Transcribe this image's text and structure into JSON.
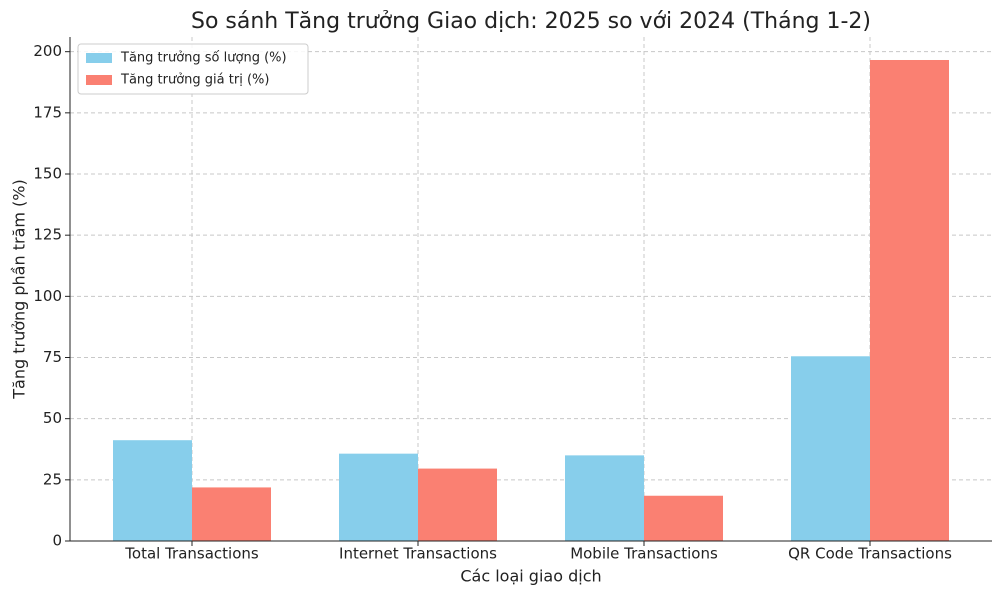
{
  "chart_data": {
    "type": "bar",
    "title": "So sánh Tăng trưởng Giao dịch: 2025 so với 2024 (Tháng 1-2)",
    "x_label": "Các loại giao dịch",
    "y_label": "Tăng trưởng phần trăm (%)",
    "categories": [
      "Total Transactions",
      "Internet Transactions",
      "Mobile Transactions",
      "QR Code Transactions"
    ],
    "series": [
      {
        "name": "Tăng trưởng số lượng (%)",
        "color": "#87ceeb",
        "values": [
          41.2,
          35.7,
          35.0,
          75.5
        ]
      },
      {
        "name": "Tăng trưởng giá trị (%)",
        "color": "#fa8072",
        "values": [
          21.9,
          29.6,
          18.5,
          196.6
        ]
      }
    ],
    "ylim": [
      0,
      206
    ],
    "yticks": [
      0,
      25,
      50,
      75,
      100,
      125,
      150,
      175,
      200
    ],
    "grid": true,
    "legend": "upper left"
  }
}
